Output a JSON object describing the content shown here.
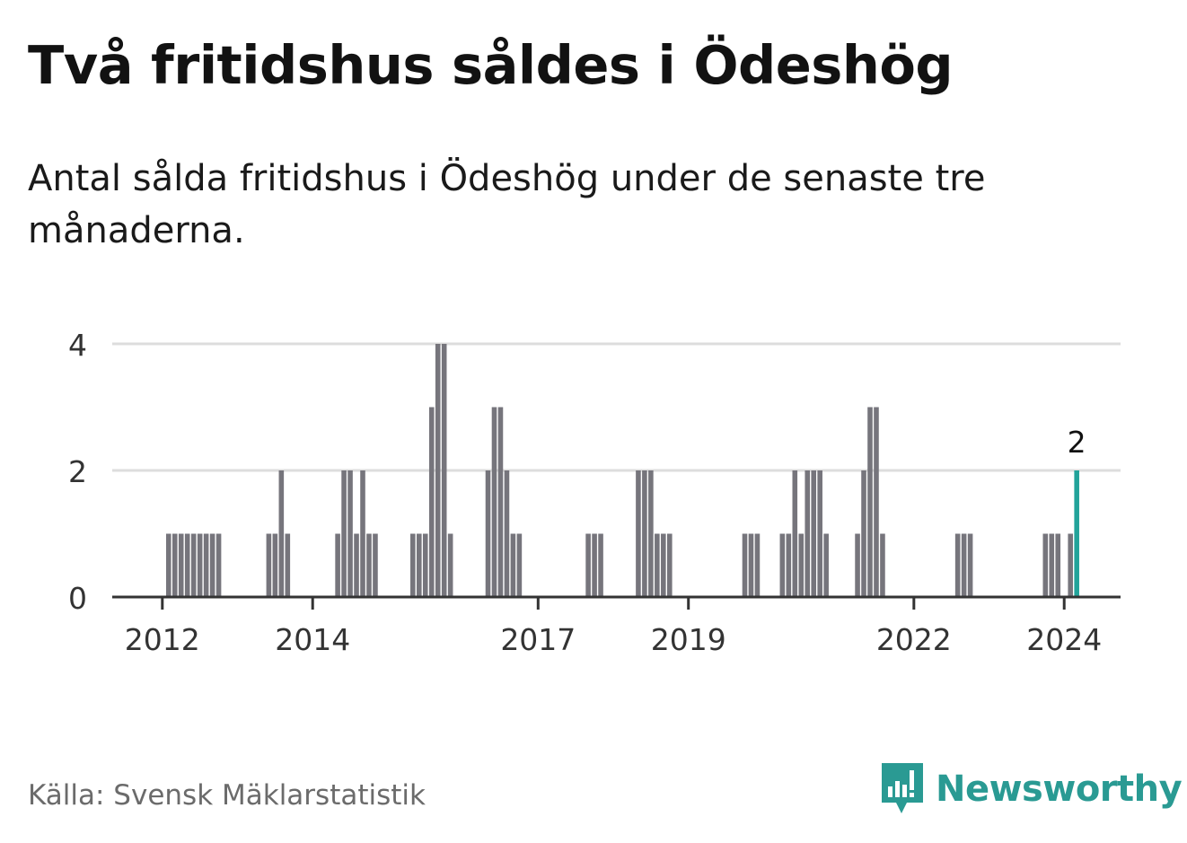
{
  "header": {
    "title": "Två fritidshus såldes i Ödeshög",
    "subtitle": "Antal sålda fritidshus i Ödeshög under de senaste tre månaderna."
  },
  "footer": {
    "source": "Källa: Svensk Mäklarstatistik",
    "brand": "Newsworthy"
  },
  "colors": {
    "bar": "#76757c",
    "highlight": "#22a39a",
    "grid": "#dddddd",
    "axis": "#333333",
    "brand": "#2a9a93"
  },
  "icons": {
    "brand_logo": "newsworthy-logo-icon"
  },
  "chart_data": {
    "type": "bar",
    "title": "Två fritidshus såldes i Ödeshög",
    "xlabel": "",
    "ylabel": "",
    "ylim": [
      0,
      4
    ],
    "yticks": [
      0,
      2,
      4
    ],
    "xticks": [
      "2012",
      "2014",
      "2017",
      "2019",
      "2022",
      "2024"
    ],
    "xtick_months": [
      0,
      24,
      60,
      84,
      120,
      144
    ],
    "month_range": [
      -8,
      153
    ],
    "grid": true,
    "legend": "none",
    "series": [
      {
        "name": "Antal sålda fritidshus (rullande tre månader)",
        "start": "2012-02",
        "values": [
          1,
          1,
          1,
          1,
          1,
          1,
          1,
          1,
          1,
          0,
          0,
          0,
          0,
          0,
          0,
          0,
          1,
          1,
          2,
          1,
          0,
          0,
          0,
          0,
          0,
          0,
          0,
          1,
          2,
          2,
          1,
          2,
          1,
          1,
          0,
          0,
          0,
          0,
          0,
          1,
          1,
          1,
          3,
          4,
          4,
          1,
          0,
          0,
          0,
          0,
          0,
          2,
          3,
          3,
          2,
          1,
          1,
          0,
          0,
          0,
          0,
          0,
          0,
          0,
          0,
          0,
          0,
          1,
          1,
          1,
          0,
          0,
          0,
          0,
          0,
          2,
          2,
          2,
          1,
          1,
          1,
          0,
          0,
          0,
          0,
          0,
          0,
          0,
          0,
          0,
          0,
          0,
          1,
          1,
          1,
          0,
          0,
          0,
          1,
          1,
          2,
          1,
          2,
          2,
          2,
          1,
          0,
          0,
          0,
          0,
          1,
          2,
          3,
          3,
          1,
          0,
          0,
          0,
          0,
          0,
          0,
          0,
          0,
          0,
          0,
          0,
          1,
          1,
          1,
          0,
          0,
          0,
          0,
          0,
          0,
          0,
          0,
          0,
          0,
          0,
          1,
          1,
          1,
          0,
          1,
          2
        ]
      }
    ],
    "highlight": {
      "index": "last",
      "label": "2"
    }
  }
}
